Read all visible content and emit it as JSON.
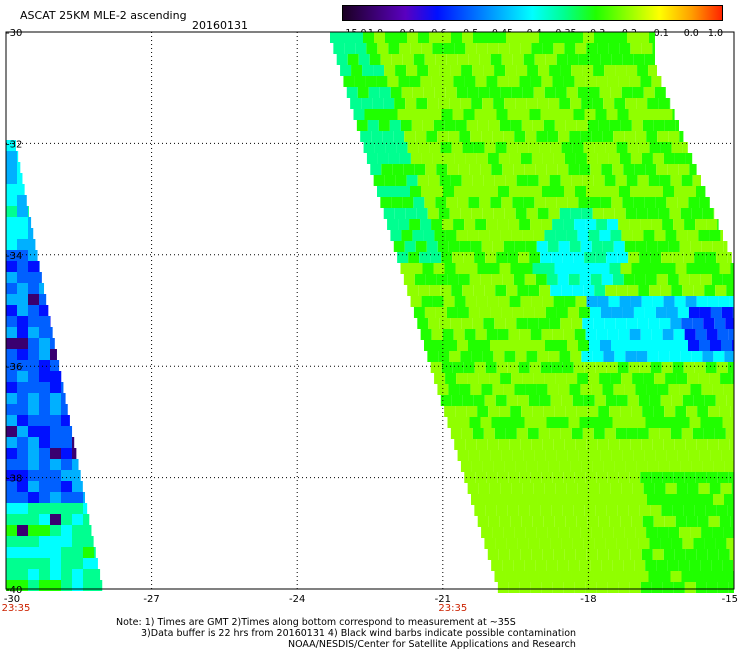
{
  "header": {
    "title": "ASCAT 25KM MLE-2 ascending",
    "date": "20160131"
  },
  "colorbar": {
    "labels": [
      "-15.0",
      "-1.0",
      "-0.8",
      "-0.6",
      "-0.5",
      "-0.45",
      "-0.4",
      "-0.35",
      "-0.3",
      "-0.2",
      "-0.1",
      "0.0",
      "1.0"
    ],
    "colors": [
      "#1a0020",
      "#3a0070",
      "#5a00c0",
      "#0010ff",
      "#0060ff",
      "#00b0ff",
      "#00ffff",
      "#00ff90",
      "#20ff00",
      "#90ff00",
      "#ffff00",
      "#ffa000",
      "#ff2000"
    ]
  },
  "map": {
    "lon_range": [
      -30,
      -15
    ],
    "lat_range": [
      -40,
      -30
    ],
    "lon_ticks": [
      "-30",
      "-27",
      "-24",
      "-21",
      "-18",
      "-15"
    ],
    "lat_ticks": [
      "-30",
      "-32",
      "-34",
      "-36",
      "-38",
      "-40"
    ],
    "time_labels": [
      {
        "lon": -30,
        "text": "23:35"
      },
      {
        "lon": -21,
        "text": "23:35"
      }
    ]
  },
  "notes": {
    "line1": "Note: 1) Times are GMT 2)Times along bottom correspond to measurement at ~35S",
    "line2": "3)Data buffer is 22 hrs from 20160131 4) Black wind barbs indicate possible contamination",
    "line3": "NOAA/NESDIS/Center for Satellite Applications and Research"
  }
}
